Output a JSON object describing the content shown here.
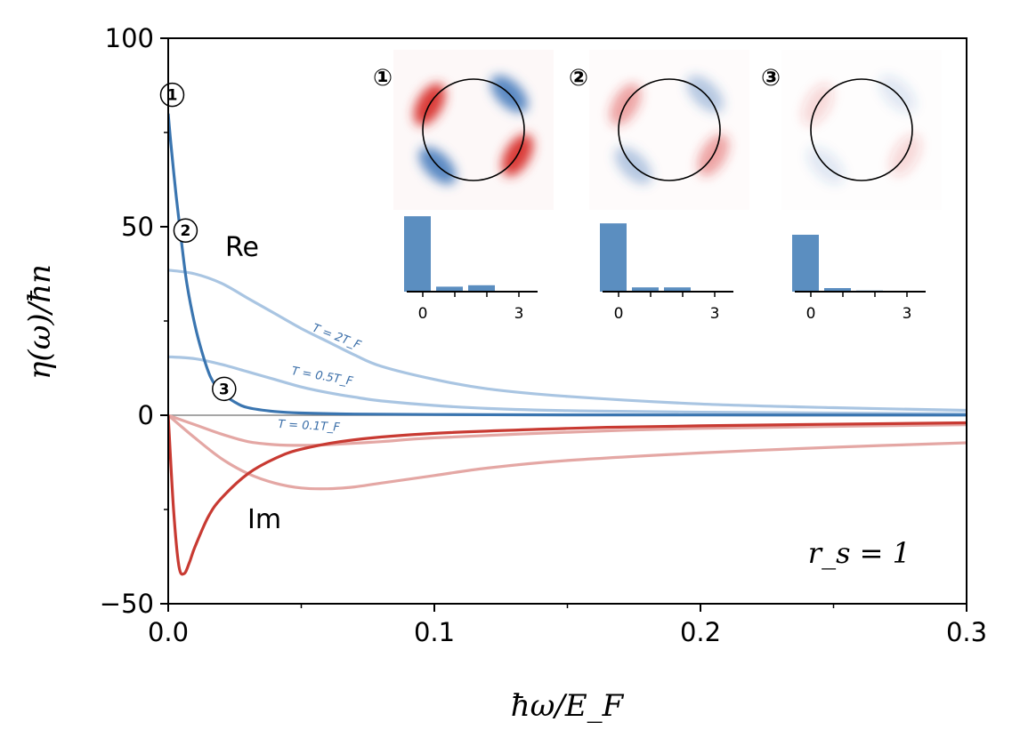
{
  "chart_data": {
    "type": "line",
    "xlabel": "ħω/E_F",
    "ylabel": "η(ω)/ħn",
    "xlim": [
      0.0,
      0.3
    ],
    "ylim": [
      -50,
      100
    ],
    "x_ticks": [
      0.0,
      0.1,
      0.2,
      0.3
    ],
    "x_tick_labels": [
      "0.0",
      "0.1",
      "0.2",
      "0.3"
    ],
    "y_ticks": [
      -50,
      0,
      50,
      100
    ],
    "y_tick_labels": [
      "−50",
      "0",
      "50",
      "100"
    ],
    "annotations": {
      "re": "Re",
      "im": "Im",
      "rs": "r_s = 1"
    },
    "colors": {
      "re": "#3a75b0",
      "re_light": "#a9c5e2",
      "im": "#c83a32",
      "im_light": "#e4a7a4",
      "zero": "#888888"
    },
    "series": [
      {
        "name": "Re, T = 0",
        "x": [
          0.0,
          0.001,
          0.003,
          0.005,
          0.007,
          0.01,
          0.013,
          0.016,
          0.02,
          0.025,
          0.03,
          0.04,
          0.05,
          0.07,
          0.1,
          0.15,
          0.2,
          0.3
        ],
        "values": [
          80,
          72,
          58,
          46,
          35,
          24,
          16,
          10,
          6,
          3.5,
          2,
          1,
          0.6,
          0.3,
          0.2,
          0.1,
          0.08,
          0.05
        ]
      },
      {
        "name": "Re, T = 2T_F",
        "label": "T = 2T_F",
        "x": [
          0.0,
          0.01,
          0.02,
          0.03,
          0.04,
          0.05,
          0.06,
          0.07,
          0.08,
          0.1,
          0.12,
          0.15,
          0.2,
          0.25,
          0.3
        ],
        "values": [
          38.5,
          37.5,
          35,
          31,
          27,
          23,
          19.5,
          16,
          13,
          9.5,
          7,
          5,
          3,
          2,
          1.3
        ]
      },
      {
        "name": "Re, T = 0.5T_F",
        "label": "T = 0.5T_F",
        "x": [
          0.0,
          0.01,
          0.02,
          0.03,
          0.04,
          0.05,
          0.06,
          0.07,
          0.08,
          0.1,
          0.12,
          0.15,
          0.2,
          0.3
        ],
        "values": [
          15.5,
          15,
          13.5,
          11.5,
          9.5,
          7.5,
          6,
          4.8,
          3.8,
          2.6,
          1.8,
          1.2,
          0.8,
          0.4
        ]
      },
      {
        "name": "Im, T = 0",
        "x": [
          0.0,
          0.002,
          0.004,
          0.006,
          0.008,
          0.01,
          0.015,
          0.02,
          0.03,
          0.04,
          0.05,
          0.07,
          0.1,
          0.15,
          0.2,
          0.3
        ],
        "values": [
          0,
          -25,
          -40,
          -42,
          -39,
          -35,
          -27,
          -22,
          -15.5,
          -11.5,
          -9,
          -6.5,
          -4.8,
          -3.5,
          -2.8,
          -2
        ]
      },
      {
        "name": "Im, T = 0.1T_F",
        "label": "T = 0.1T_F",
        "x": [
          0.0,
          0.01,
          0.02,
          0.03,
          0.04,
          0.05,
          0.06,
          0.08,
          0.1,
          0.15,
          0.2,
          0.3
        ],
        "values": [
          0,
          -2.5,
          -5,
          -7,
          -7.8,
          -8,
          -7.8,
          -7,
          -6,
          -4.5,
          -3.5,
          -2.5
        ]
      },
      {
        "name": "Im, T = 0.5T_F",
        "x": [
          0.0,
          0.01,
          0.02,
          0.03,
          0.04,
          0.05,
          0.06,
          0.07,
          0.08,
          0.1,
          0.12,
          0.15,
          0.2,
          0.25,
          0.3
        ],
        "values": [
          0,
          -6,
          -11.5,
          -15.5,
          -18,
          -19.3,
          -19.5,
          -19,
          -18,
          -16,
          -14,
          -12,
          -10,
          -8.5,
          -7.3
        ]
      }
    ],
    "markers": [
      {
        "label": "①",
        "x": 0.0015,
        "y": 85
      },
      {
        "label": "②",
        "x": 0.0065,
        "y": 49
      },
      {
        "label": "③",
        "x": 0.021,
        "y": 7
      }
    ],
    "insets": [
      {
        "label": "①",
        "bar_values": [
          53,
          3.5,
          4.5,
          0.5
        ],
        "x_tick_labels": [
          "0",
          "3"
        ]
      },
      {
        "label": "②",
        "bar_values": [
          48,
          3,
          3,
          0.3
        ],
        "x_tick_labels": [
          "0",
          "3"
        ]
      },
      {
        "label": "③",
        "bar_values": [
          40,
          2.5,
          0.8,
          0.2
        ],
        "x_tick_labels": [
          "0",
          "3"
        ]
      }
    ]
  }
}
